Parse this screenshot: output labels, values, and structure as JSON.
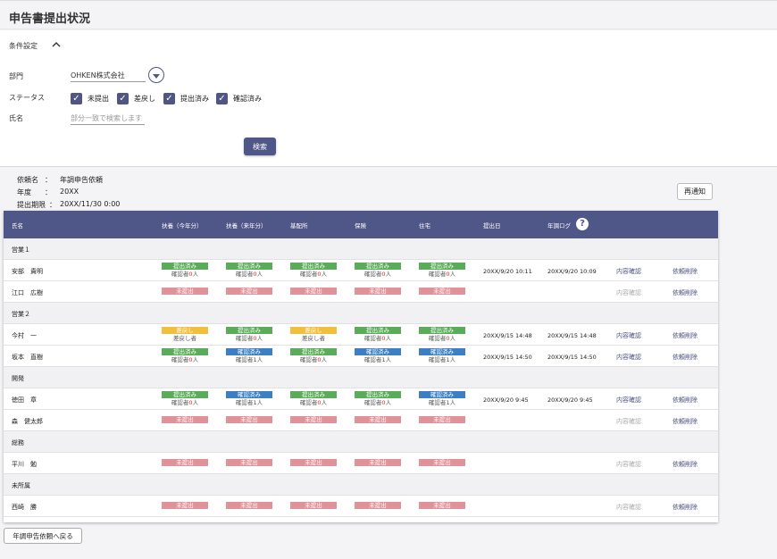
{
  "page_title": "申告書提出状況",
  "conditions": {
    "title": "条件設定",
    "dept_label": "部門",
    "dept_value": "OHKEN株式会社",
    "status_label": "ステータス",
    "statuses": [
      "未提出",
      "差戻し",
      "提出済み",
      "確認済み"
    ],
    "name_label": "氏名",
    "name_placeholder": "部分一致で検索します",
    "search_label": "検索"
  },
  "request": {
    "name_label": "依頼名",
    "name_value": "年調申告依頼",
    "year_label": "年度",
    "year_value": "20XX",
    "deadline_label": "提出期限",
    "deadline_value": "20XX/11/30 0:00",
    "colon": "：",
    "renotify_label": "再通知"
  },
  "colors": {
    "header": "#4f5688",
    "submitted": "#5aab5a",
    "confirmed": "#3d7fc5",
    "returned": "#f0bf3d",
    "not_submitted": "#e0929a",
    "count": "#d23232",
    "action": "#4a5080",
    "action_disabled": "#aaaaaa"
  },
  "table": {
    "headers": [
      "氏名",
      "扶養（今年分）",
      "扶養（来年分）",
      "基配所",
      "保険",
      "住宅",
      "提出日",
      "年調ログ"
    ],
    "help_icon": "help-icon",
    "action_detail": "内容確認",
    "action_delete": "依頼削除",
    "rows": [
      {
        "kind": "group",
        "label": "営業１"
      },
      {
        "kind": "emp",
        "name": "安部　貴明",
        "cells": [
          {
            "s": "submitted",
            "b": "提出済み",
            "l": "確認者",
            "n": "0",
            "u": "人"
          },
          {
            "s": "submitted",
            "b": "提出済み",
            "l": "確認者",
            "n": "0",
            "u": "人"
          },
          {
            "s": "submitted",
            "b": "提出済み",
            "l": "確認者",
            "n": "0",
            "u": "人"
          },
          {
            "s": "submitted",
            "b": "提出済み",
            "l": "確認者",
            "n": "0",
            "u": "人"
          },
          {
            "s": "submitted",
            "b": "提出済み",
            "l": "確認者",
            "n": "0",
            "u": "人"
          }
        ],
        "submitted": "20XX/9/20 10:11",
        "log": "20XX/9/20 10:09",
        "detail_enabled": true
      },
      {
        "kind": "emp",
        "name": "江口　広樹",
        "cells": [
          {
            "s": "not_submitted",
            "b": "未提出"
          },
          {
            "s": "not_submitted",
            "b": "未提出"
          },
          {
            "s": "not_submitted",
            "b": "未提出"
          },
          {
            "s": "not_submitted",
            "b": "未提出"
          },
          {
            "s": "not_submitted",
            "b": "未提出"
          }
        ],
        "submitted": "",
        "log": "",
        "detail_enabled": false
      },
      {
        "kind": "group",
        "label": "営業２"
      },
      {
        "kind": "emp",
        "name": "今村　一",
        "cells": [
          {
            "s": "returned",
            "b": "差戻し",
            "l": "差戻し者"
          },
          {
            "s": "submitted",
            "b": "提出済み",
            "l": "確認者",
            "n": "0",
            "u": "人"
          },
          {
            "s": "returned",
            "b": "差戻し",
            "l": "差戻し者"
          },
          {
            "s": "submitted",
            "b": "提出済み",
            "l": "確認者",
            "n": "0",
            "u": "人"
          },
          {
            "s": "submitted",
            "b": "提出済み",
            "l": "確認者",
            "n": "0",
            "u": "人"
          }
        ],
        "submitted": "20XX/9/15 14:48",
        "log": "20XX/9/15 14:48",
        "detail_enabled": true
      },
      {
        "kind": "emp",
        "name": "坂本　直樹",
        "cells": [
          {
            "s": "submitted",
            "b": "提出済み",
            "l": "確認者",
            "n": "0",
            "u": "人"
          },
          {
            "s": "confirmed",
            "b": "確認済み",
            "l": "確認者",
            "n": "1",
            "u": "人",
            "black": true
          },
          {
            "s": "submitted",
            "b": "提出済み",
            "l": "確認者",
            "n": "0",
            "u": "人"
          },
          {
            "s": "confirmed",
            "b": "確認済み",
            "l": "確認者",
            "n": "1",
            "u": "人",
            "black": true
          },
          {
            "s": "confirmed",
            "b": "確認済み",
            "l": "確認者",
            "n": "1",
            "u": "人",
            "black": true
          }
        ],
        "submitted": "20XX/9/15 14:50",
        "log": "20XX/9/15 14:50",
        "detail_enabled": true
      },
      {
        "kind": "group",
        "label": "開発"
      },
      {
        "kind": "emp",
        "name": "徳田　章",
        "cells": [
          {
            "s": "submitted",
            "b": "提出済み",
            "l": "確認者",
            "n": "0",
            "u": "人"
          },
          {
            "s": "confirmed",
            "b": "確認済み",
            "l": "確認者",
            "n": "1",
            "u": "人",
            "black": true
          },
          {
            "s": "submitted",
            "b": "提出済み",
            "l": "確認者",
            "n": "0",
            "u": "人"
          },
          {
            "s": "submitted",
            "b": "提出済み",
            "l": "確認者",
            "n": "0",
            "u": "人"
          },
          {
            "s": "confirmed",
            "b": "確認済み",
            "l": "確認者",
            "n": "1",
            "u": "人",
            "black": true
          }
        ],
        "submitted": "20XX/9/20 9:45",
        "log": "20XX/9/20 9:45",
        "detail_enabled": true
      },
      {
        "kind": "emp",
        "name": "森　健太郎",
        "cells": [
          {
            "s": "not_submitted",
            "b": "未提出"
          },
          {
            "s": "not_submitted",
            "b": "未提出"
          },
          {
            "s": "not_submitted",
            "b": "未提出"
          },
          {
            "s": "not_submitted",
            "b": "未提出"
          },
          {
            "s": "not_submitted",
            "b": "未提出"
          }
        ],
        "submitted": "",
        "log": "",
        "detail_enabled": false
      },
      {
        "kind": "group",
        "label": "総務"
      },
      {
        "kind": "emp",
        "name": "平川　勉",
        "cells": [
          {
            "s": "not_submitted",
            "b": "未提出"
          },
          {
            "s": "not_submitted",
            "b": "未提出"
          },
          {
            "s": "not_submitted",
            "b": "未提出"
          },
          {
            "s": "not_submitted",
            "b": "未提出"
          },
          {
            "s": "not_submitted",
            "b": "未提出"
          }
        ],
        "submitted": "",
        "log": "",
        "detail_enabled": false
      },
      {
        "kind": "group",
        "label": "未所属"
      },
      {
        "kind": "emp",
        "name": "西崎　勝",
        "cells": [
          {
            "s": "not_submitted",
            "b": "未提出"
          },
          {
            "s": "not_submitted",
            "b": "未提出"
          },
          {
            "s": "not_submitted",
            "b": "未提出"
          },
          {
            "s": "not_submitted",
            "b": "未提出"
          },
          {
            "s": "not_submitted",
            "b": "未提出"
          }
        ],
        "submitted": "",
        "log": "",
        "detail_enabled": false
      }
    ]
  },
  "back_label": "年調申告依頼へ戻る"
}
